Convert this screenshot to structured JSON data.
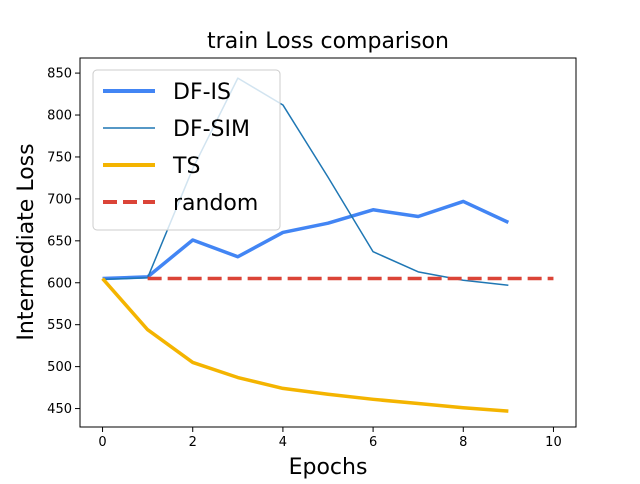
{
  "chart_data": {
    "type": "line",
    "title": "train Loss comparison",
    "xlabel": "Epochs",
    "ylabel": "Intermediate Loss",
    "xlim": [
      -0.5,
      10.5
    ],
    "ylim": [
      428,
      868
    ],
    "xticks": [
      0,
      2,
      4,
      6,
      8,
      10
    ],
    "yticks": [
      450,
      500,
      550,
      600,
      650,
      700,
      750,
      800,
      850
    ],
    "grid": false,
    "legend_position": "top-left",
    "series": [
      {
        "name": "DF-IS",
        "color": "#4285f4",
        "line_width": "thick",
        "dash": "solid",
        "x": [
          0,
          1,
          2,
          3,
          4,
          5,
          6,
          7,
          8,
          9
        ],
        "y": [
          605,
          607,
          651,
          631,
          660,
          671,
          687,
          679,
          697,
          672
        ]
      },
      {
        "name": "DF-SIM",
        "color": "#1f77b4",
        "line_width": "thin",
        "dash": "solid",
        "x": [
          0,
          1,
          2,
          3,
          4,
          5,
          6,
          7,
          8,
          9
        ],
        "y": [
          604,
          606,
          736,
          844,
          812,
          726,
          637,
          613,
          603,
          597
        ]
      },
      {
        "name": "TS",
        "color": "#f4b400",
        "line_width": "thick",
        "dash": "solid",
        "x": [
          0,
          1,
          2,
          3,
          4,
          5,
          6,
          7,
          8,
          9
        ],
        "y": [
          605,
          544,
          505,
          487,
          474,
          467,
          461,
          456,
          451,
          447
        ]
      },
      {
        "name": "random",
        "color": "#db4437",
        "line_width": "thick",
        "dash": "dashed",
        "x": [
          1,
          10
        ],
        "y": [
          605,
          605
        ]
      }
    ]
  }
}
